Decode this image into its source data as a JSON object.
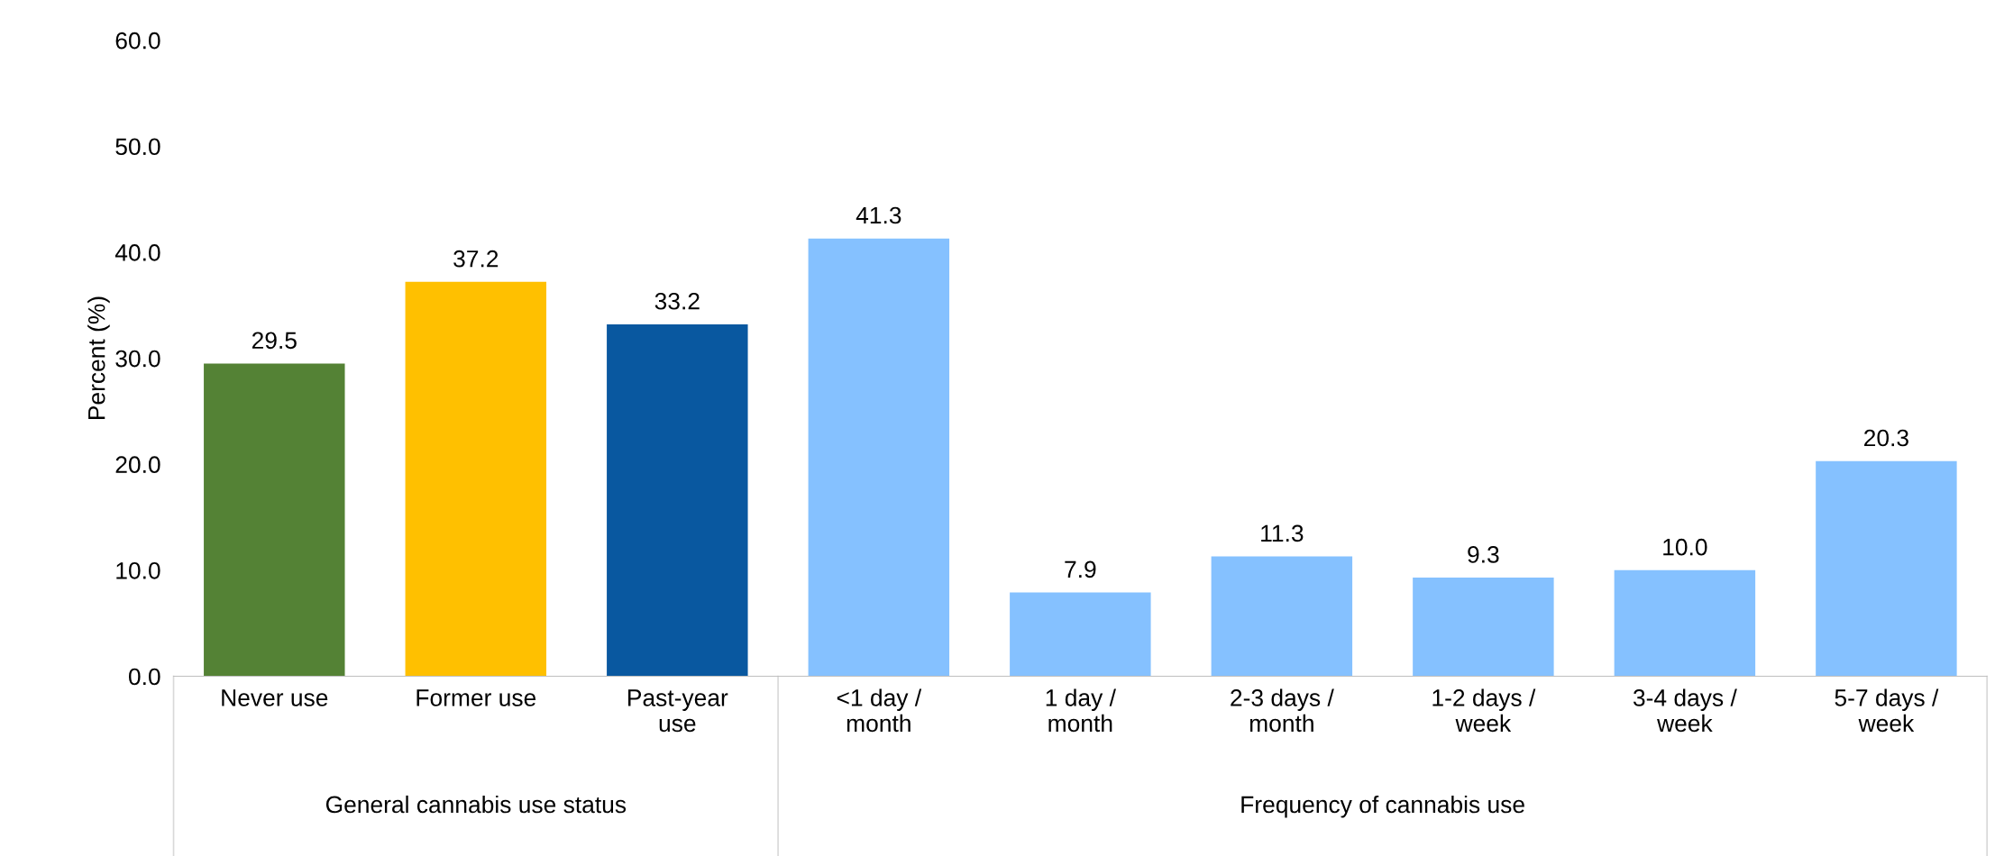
{
  "chart_data": {
    "type": "bar",
    "ylabel": "Percent (%)",
    "categories": [
      "Never use",
      "Former use",
      "Past-year\nuse",
      "<1 day /\nmonth",
      "1 day /\nmonth",
      "2-3 days /\nmonth",
      "1-2 days /\nweek",
      "3-4 days /\nweek",
      "5-7 days /\nweek"
    ],
    "values": [
      29.5,
      37.2,
      33.2,
      41.3,
      7.9,
      11.3,
      9.3,
      10.0,
      20.3
    ],
    "colors": [
      "#548235",
      "#ffc000",
      "#0958a0",
      "#85c1ff",
      "#85c1ff",
      "#85c1ff",
      "#85c1ff",
      "#85c1ff",
      "#85c1ff"
    ],
    "value_labels": [
      "29.5",
      "37.2",
      "33.2",
      "41.3",
      "7.9",
      "11.3",
      "9.3",
      "10.0",
      "20.3"
    ],
    "ylim": [
      0,
      60
    ],
    "yticks": [
      {
        "value": 0,
        "label": "0.0"
      },
      {
        "value": 10,
        "label": "10.0"
      },
      {
        "value": 20,
        "label": "20.0"
      },
      {
        "value": 30,
        "label": "30.0"
      },
      {
        "value": 40,
        "label": "40.0"
      },
      {
        "value": 50,
        "label": "50.0"
      },
      {
        "value": 60,
        "label": "60.0"
      }
    ],
    "annotations": [
      "General cannabis use status",
      "Frequency of cannabis use"
    ]
  }
}
